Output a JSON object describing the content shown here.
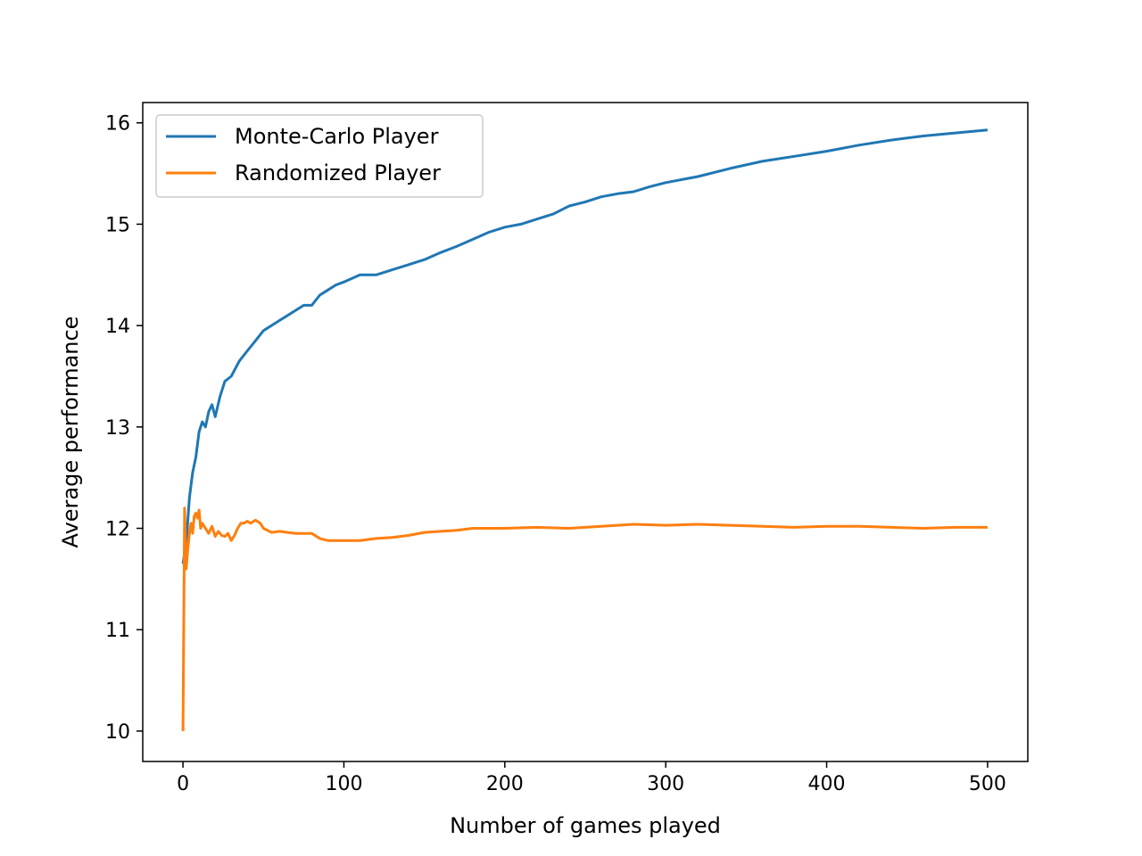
{
  "chart_data": {
    "type": "line",
    "title": "",
    "xlabel": "Number of games played",
    "ylabel": "Average performance",
    "xlim": [
      -25,
      525
    ],
    "ylim": [
      9.7,
      16.2
    ],
    "xticks": [
      0,
      100,
      200,
      300,
      400,
      500
    ],
    "xtick_labels": [
      "0",
      "100",
      "200",
      "300",
      "400",
      "500"
    ],
    "yticks": [
      10,
      11,
      12,
      13,
      14,
      15,
      16
    ],
    "ytick_labels": [
      "10",
      "11",
      "12",
      "13",
      "14",
      "15",
      "16"
    ],
    "grid": false,
    "legend_position": "top-left",
    "series": [
      {
        "name": "Monte-Carlo Player",
        "color": "#1f77b4",
        "x": [
          0,
          2,
          4,
          6,
          8,
          10,
          12,
          14,
          16,
          18,
          20,
          23,
          26,
          30,
          35,
          40,
          45,
          50,
          55,
          60,
          65,
          70,
          75,
          80,
          85,
          90,
          95,
          100,
          110,
          120,
          130,
          140,
          150,
          160,
          170,
          180,
          190,
          200,
          210,
          220,
          230,
          240,
          250,
          260,
          270,
          280,
          290,
          300,
          320,
          340,
          360,
          380,
          400,
          420,
          440,
          460,
          480,
          500
        ],
        "y": [
          11.65,
          11.85,
          12.3,
          12.55,
          12.7,
          12.95,
          13.05,
          13.0,
          13.15,
          13.22,
          13.1,
          13.3,
          13.45,
          13.5,
          13.65,
          13.75,
          13.85,
          13.95,
          14.0,
          14.05,
          14.1,
          14.15,
          14.2,
          14.2,
          14.3,
          14.35,
          14.4,
          14.43,
          14.5,
          14.5,
          14.55,
          14.6,
          14.65,
          14.72,
          14.78,
          14.85,
          14.92,
          14.97,
          15.0,
          15.05,
          15.1,
          15.18,
          15.22,
          15.27,
          15.3,
          15.32,
          15.37,
          15.41,
          15.47,
          15.55,
          15.62,
          15.67,
          15.72,
          15.78,
          15.83,
          15.87,
          15.9,
          15.93
        ]
      },
      {
        "name": "Randomized Player",
        "color": "#ff7f0e",
        "x": [
          0,
          1,
          2,
          3,
          4,
          5,
          6,
          7,
          8,
          9,
          10,
          11,
          12,
          14,
          16,
          18,
          20,
          22,
          24,
          26,
          28,
          30,
          32,
          34,
          36,
          38,
          40,
          42,
          45,
          48,
          50,
          55,
          60,
          65,
          70,
          75,
          80,
          85,
          90,
          95,
          100,
          110,
          120,
          130,
          140,
          150,
          160,
          170,
          180,
          190,
          200,
          220,
          240,
          260,
          280,
          300,
          320,
          340,
          360,
          380,
          400,
          420,
          440,
          460,
          480,
          500
        ],
        "y": [
          10.0,
          12.2,
          11.6,
          11.8,
          11.95,
          12.05,
          11.95,
          12.12,
          12.15,
          12.1,
          12.18,
          12.0,
          12.05,
          12.0,
          11.95,
          12.02,
          11.92,
          11.97,
          11.93,
          11.92,
          11.95,
          11.88,
          11.93,
          12.0,
          12.05,
          12.05,
          12.07,
          12.05,
          12.08,
          12.05,
          12.0,
          11.96,
          11.97,
          11.96,
          11.95,
          11.95,
          11.95,
          11.9,
          11.88,
          11.88,
          11.88,
          11.88,
          11.9,
          11.91,
          11.93,
          11.96,
          11.97,
          11.98,
          12.0,
          12.0,
          12.0,
          12.01,
          12.0,
          12.02,
          12.04,
          12.03,
          12.04,
          12.03,
          12.02,
          12.01,
          12.02,
          12.02,
          12.01,
          12.0,
          12.01,
          12.01
        ]
      }
    ]
  }
}
